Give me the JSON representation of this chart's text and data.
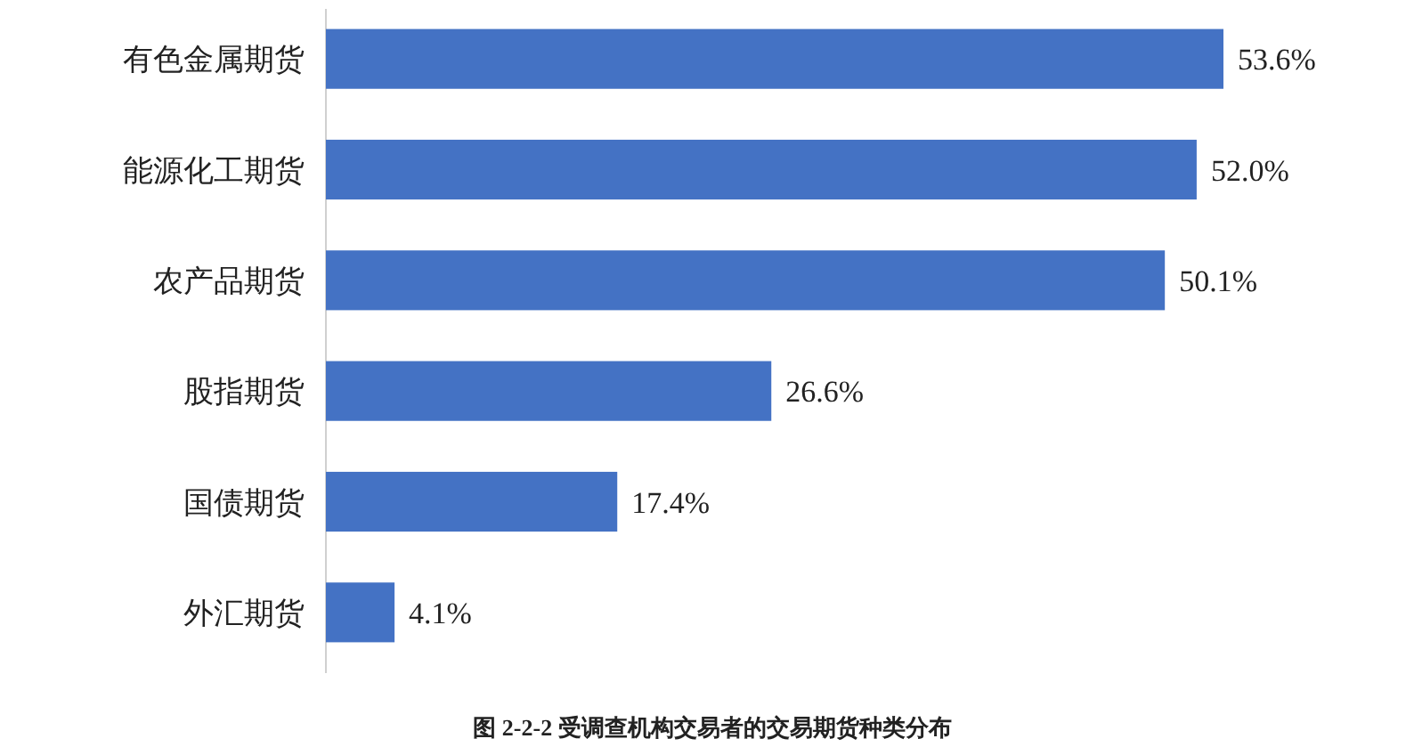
{
  "chart_data": {
    "type": "bar",
    "orientation": "horizontal",
    "categories": [
      "有色金属期货",
      "能源化工期货",
      "农产品期货",
      "股指期货",
      "国债期货",
      "外汇期货"
    ],
    "values": [
      53.6,
      52.0,
      50.1,
      26.6,
      17.4,
      4.1
    ],
    "value_labels": [
      "53.6%",
      "52.0%",
      "50.1%",
      "26.6%",
      "17.4%",
      "4.1%"
    ],
    "color": "#4472c4",
    "annotations": [
      "图 2-2-2  受调查机构交易者的交易期货种类分布"
    ]
  }
}
